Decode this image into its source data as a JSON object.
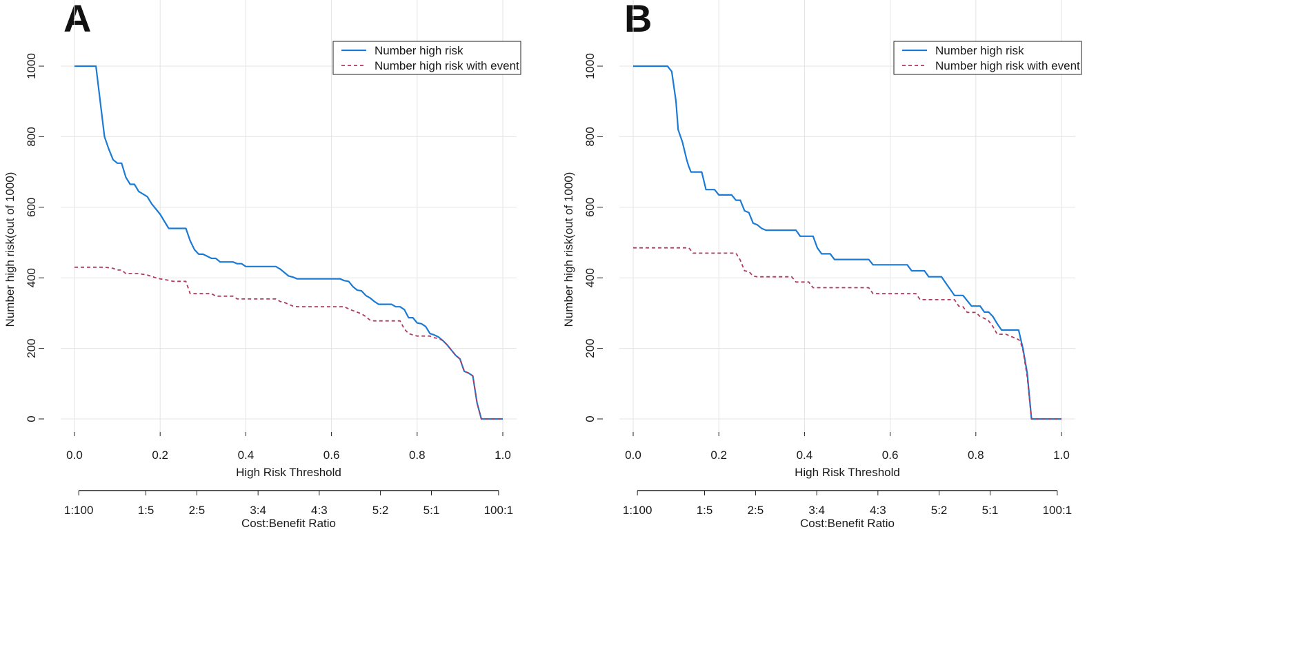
{
  "chart_data": [
    {
      "type": "line",
      "panel_label": "A",
      "xlabel": "High Risk Threshold",
      "ylabel": "Number high risk(out of 1000)",
      "x_ticks": [
        "0.0",
        "0.2",
        "0.4",
        "0.6",
        "0.8",
        "1.0"
      ],
      "y_ticks": [
        "0",
        "200",
        "400",
        "600",
        "800",
        "1000"
      ],
      "xlim": [
        0,
        1
      ],
      "ylim": [
        0,
        1000
      ],
      "grid": true,
      "legend_position": "top-right",
      "cost_benefit_label": "Cost:Benefit Ratio",
      "cost_benefit_ticks": [
        {
          "x": 0.0099,
          "label": "1:100"
        },
        {
          "x": 0.1667,
          "label": "1:5"
        },
        {
          "x": 0.2857,
          "label": "2:5"
        },
        {
          "x": 0.4286,
          "label": "3:4"
        },
        {
          "x": 0.5714,
          "label": "4:3"
        },
        {
          "x": 0.7143,
          "label": "5:2"
        },
        {
          "x": 0.8333,
          "label": "5:1"
        },
        {
          "x": 0.9901,
          "label": "100:1"
        }
      ],
      "series": [
        {
          "name": "Number high risk",
          "color": "#1a7ad4",
          "dash": "solid",
          "points": [
            [
              0,
              1000
            ],
            [
              0.05,
              1000
            ],
            [
              0.055,
              950
            ],
            [
              0.065,
              850
            ],
            [
              0.07,
              800
            ],
            [
              0.08,
              765
            ],
            [
              0.09,
              735
            ],
            [
              0.1,
              725
            ],
            [
              0.11,
              725
            ],
            [
              0.12,
              685
            ],
            [
              0.13,
              665
            ],
            [
              0.14,
              665
            ],
            [
              0.15,
              645
            ],
            [
              0.17,
              630
            ],
            [
              0.18,
              610
            ],
            [
              0.2,
              580
            ],
            [
              0.22,
              540
            ],
            [
              0.26,
              540
            ],
            [
              0.27,
              505
            ],
            [
              0.28,
              480
            ],
            [
              0.29,
              467
            ],
            [
              0.3,
              467
            ],
            [
              0.32,
              455
            ],
            [
              0.33,
              455
            ],
            [
              0.34,
              445
            ],
            [
              0.37,
              445
            ],
            [
              0.38,
              440
            ],
            [
              0.39,
              440
            ],
            [
              0.4,
              432
            ],
            [
              0.47,
              432
            ],
            [
              0.48,
              425
            ],
            [
              0.49,
              415
            ],
            [
              0.5,
              405
            ],
            [
              0.51,
              402
            ],
            [
              0.52,
              397
            ],
            [
              0.62,
              397
            ],
            [
              0.63,
              392
            ],
            [
              0.64,
              390
            ],
            [
              0.65,
              375
            ],
            [
              0.66,
              365
            ],
            [
              0.67,
              363
            ],
            [
              0.68,
              350
            ],
            [
              0.69,
              343
            ],
            [
              0.7,
              333
            ],
            [
              0.71,
              325
            ],
            [
              0.74,
              325
            ],
            [
              0.75,
              318
            ],
            [
              0.76,
              318
            ],
            [
              0.77,
              310
            ],
            [
              0.78,
              287
            ],
            [
              0.79,
              287
            ],
            [
              0.8,
              272
            ],
            [
              0.81,
              270
            ],
            [
              0.82,
              262
            ],
            [
              0.83,
              242
            ],
            [
              0.84,
              238
            ],
            [
              0.85,
              232
            ],
            [
              0.86,
              222
            ],
            [
              0.87,
              210
            ],
            [
              0.88,
              195
            ],
            [
              0.89,
              180
            ],
            [
              0.9,
              170
            ],
            [
              0.91,
              135
            ],
            [
              0.92,
              130
            ],
            [
              0.93,
              122
            ],
            [
              0.94,
              45
            ],
            [
              0.95,
              0
            ],
            [
              1.0,
              0
            ]
          ]
        },
        {
          "name": "Number high risk with event",
          "color": "#b03a5b",
          "dash": "dashed",
          "points": [
            [
              0,
              430
            ],
            [
              0.07,
              430
            ],
            [
              0.09,
              427
            ],
            [
              0.1,
              422
            ],
            [
              0.11,
              422
            ],
            [
              0.12,
              412
            ],
            [
              0.15,
              412
            ],
            [
              0.17,
              408
            ],
            [
              0.19,
              400
            ],
            [
              0.2,
              397
            ],
            [
              0.22,
              393
            ],
            [
              0.23,
              390
            ],
            [
              0.26,
              390
            ],
            [
              0.27,
              355
            ],
            [
              0.32,
              355
            ],
            [
              0.33,
              348
            ],
            [
              0.37,
              348
            ],
            [
              0.38,
              340
            ],
            [
              0.47,
              340
            ],
            [
              0.48,
              333
            ],
            [
              0.49,
              330
            ],
            [
              0.5,
              325
            ],
            [
              0.51,
              320
            ],
            [
              0.52,
              318
            ],
            [
              0.63,
              318
            ],
            [
              0.64,
              312
            ],
            [
              0.65,
              307
            ],
            [
              0.67,
              298
            ],
            [
              0.68,
              290
            ],
            [
              0.69,
              280
            ],
            [
              0.7,
              278
            ],
            [
              0.76,
              278
            ],
            [
              0.77,
              255
            ],
            [
              0.78,
              242
            ],
            [
              0.79,
              238
            ],
            [
              0.8,
              235
            ],
            [
              0.83,
              235
            ],
            [
              0.84,
              230
            ],
            [
              0.85,
              228
            ],
            [
              0.86,
              222
            ],
            [
              0.87,
              210
            ],
            [
              0.88,
              195
            ],
            [
              0.89,
              180
            ],
            [
              0.9,
              170
            ],
            [
              0.91,
              135
            ],
            [
              0.92,
              130
            ],
            [
              0.93,
              122
            ],
            [
              0.94,
              45
            ],
            [
              0.95,
              0
            ],
            [
              1.0,
              0
            ]
          ]
        }
      ]
    },
    {
      "type": "line",
      "panel_label": "B",
      "xlabel": "High Risk Threshold",
      "ylabel": "Number high risk(out of 1000)",
      "x_ticks": [
        "0.0",
        "0.2",
        "0.4",
        "0.6",
        "0.8",
        "1.0"
      ],
      "y_ticks": [
        "0",
        "200",
        "400",
        "600",
        "800",
        "1000"
      ],
      "xlim": [
        0,
        1
      ],
      "ylim": [
        0,
        1000
      ],
      "grid": true,
      "legend_position": "top-right",
      "cost_benefit_label": "Cost:Benefit Ratio",
      "cost_benefit_ticks": [
        {
          "x": 0.0099,
          "label": "1:100"
        },
        {
          "x": 0.1667,
          "label": "1:5"
        },
        {
          "x": 0.2857,
          "label": "2:5"
        },
        {
          "x": 0.4286,
          "label": "3:4"
        },
        {
          "x": 0.5714,
          "label": "4:3"
        },
        {
          "x": 0.7143,
          "label": "5:2"
        },
        {
          "x": 0.8333,
          "label": "5:1"
        },
        {
          "x": 0.9901,
          "label": "100:1"
        }
      ],
      "series": [
        {
          "name": "Number high risk",
          "color": "#1a7ad4",
          "dash": "solid",
          "points": [
            [
              0,
              1000
            ],
            [
              0.08,
              1000
            ],
            [
              0.09,
              985
            ],
            [
              0.1,
              900
            ],
            [
              0.105,
              820
            ],
            [
              0.115,
              785
            ],
            [
              0.125,
              735
            ],
            [
              0.13,
              715
            ],
            [
              0.135,
              700
            ],
            [
              0.16,
              700
            ],
            [
              0.17,
              650
            ],
            [
              0.19,
              650
            ],
            [
              0.2,
              635
            ],
            [
              0.23,
              635
            ],
            [
              0.24,
              620
            ],
            [
              0.25,
              620
            ],
            [
              0.26,
              590
            ],
            [
              0.27,
              585
            ],
            [
              0.28,
              555
            ],
            [
              0.29,
              550
            ],
            [
              0.3,
              540
            ],
            [
              0.31,
              535
            ],
            [
              0.38,
              535
            ],
            [
              0.39,
              518
            ],
            [
              0.42,
              518
            ],
            [
              0.43,
              485
            ],
            [
              0.44,
              468
            ],
            [
              0.46,
              468
            ],
            [
              0.47,
              452
            ],
            [
              0.55,
              452
            ],
            [
              0.56,
              437
            ],
            [
              0.64,
              437
            ],
            [
              0.65,
              420
            ],
            [
              0.68,
              420
            ],
            [
              0.69,
              403
            ],
            [
              0.72,
              403
            ],
            [
              0.73,
              385
            ],
            [
              0.74,
              368
            ],
            [
              0.75,
              350
            ],
            [
              0.77,
              350
            ],
            [
              0.78,
              335
            ],
            [
              0.79,
              320
            ],
            [
              0.81,
              320
            ],
            [
              0.82,
              303
            ],
            [
              0.83,
              303
            ],
            [
              0.84,
              290
            ],
            [
              0.85,
              270
            ],
            [
              0.86,
              252
            ],
            [
              0.9,
              252
            ],
            [
              0.905,
              225
            ],
            [
              0.91,
              200
            ],
            [
              0.92,
              130
            ],
            [
              0.93,
              0
            ],
            [
              1.0,
              0
            ]
          ]
        },
        {
          "name": "Number high risk with event",
          "color": "#b03a5b",
          "dash": "dashed",
          "points": [
            [
              0,
              485
            ],
            [
              0.13,
              485
            ],
            [
              0.14,
              470
            ],
            [
              0.24,
              470
            ],
            [
              0.25,
              450
            ],
            [
              0.26,
              420
            ],
            [
              0.27,
              418
            ],
            [
              0.28,
              405
            ],
            [
              0.29,
              403
            ],
            [
              0.37,
              403
            ],
            [
              0.38,
              388
            ],
            [
              0.41,
              388
            ],
            [
              0.42,
              372
            ],
            [
              0.55,
              372
            ],
            [
              0.56,
              355
            ],
            [
              0.66,
              355
            ],
            [
              0.67,
              338
            ],
            [
              0.75,
              338
            ],
            [
              0.76,
              320
            ],
            [
              0.77,
              318
            ],
            [
              0.78,
              302
            ],
            [
              0.8,
              302
            ],
            [
              0.81,
              290
            ],
            [
              0.82,
              285
            ],
            [
              0.83,
              278
            ],
            [
              0.84,
              262
            ],
            [
              0.85,
              240
            ],
            [
              0.87,
              240
            ],
            [
              0.88,
              235
            ],
            [
              0.9,
              225
            ],
            [
              0.905,
              215
            ],
            [
              0.91,
              195
            ],
            [
              0.92,
              120
            ],
            [
              0.93,
              0
            ],
            [
              1.0,
              0
            ]
          ]
        }
      ]
    }
  ]
}
